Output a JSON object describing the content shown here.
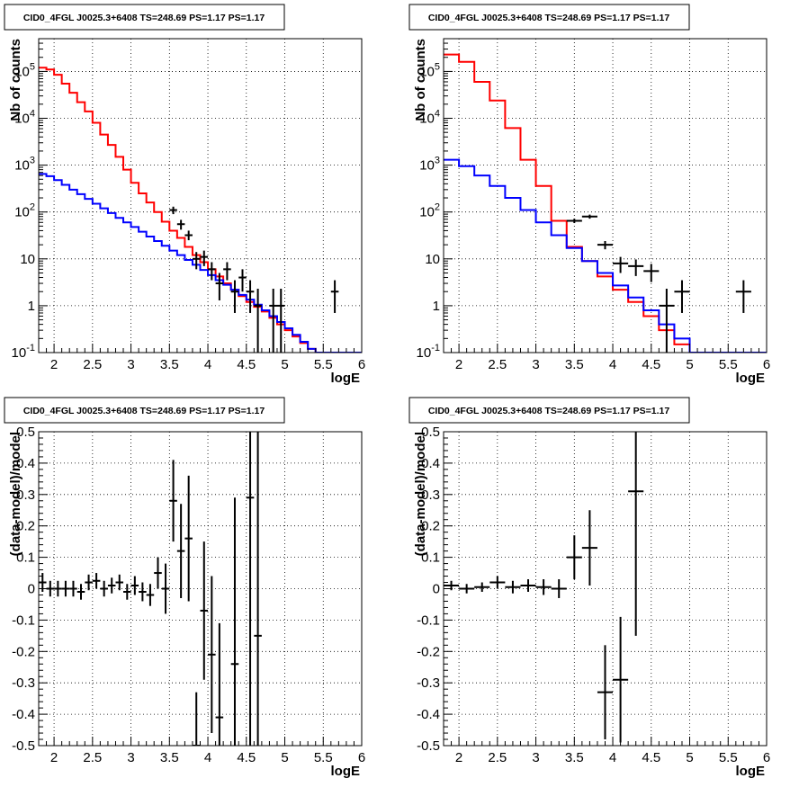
{
  "chart_data": [
    {
      "type": "line",
      "title": "CID0_4FGL J0025.3+6408 TS=248.69 PS=1.17 PS=1.17",
      "xlabel": "logE",
      "ylabel": "Nb of counts",
      "xlim": [
        1.8,
        6.0
      ],
      "ylim": [
        0.1,
        500000
      ],
      "yscale": "log",
      "grid": true,
      "x_ticks": [
        "2",
        "2.5",
        "3",
        "3.5",
        "4",
        "4.5",
        "5",
        "5.5",
        "6"
      ],
      "y_ticks": [
        "10^-1",
        "1",
        "10",
        "10^2",
        "10^3",
        "10^4",
        "10^5"
      ],
      "bin_edges": [
        1.8,
        1.9,
        2.0,
        2.1,
        2.2,
        2.3,
        2.4,
        2.5,
        2.6,
        2.7,
        2.8,
        2.9,
        3.0,
        3.1,
        3.2,
        3.3,
        3.4,
        3.5,
        3.6,
        3.7,
        3.8,
        3.9,
        4.0,
        4.1,
        4.2,
        4.3,
        4.4,
        4.5,
        4.6,
        4.7,
        4.8,
        4.9,
        5.0,
        5.1,
        5.2,
        5.3,
        5.4,
        5.5,
        5.6,
        5.7,
        5.8,
        5.9,
        6.0
      ],
      "series": [
        {
          "color": "#ff0000",
          "style": "step",
          "values": [
            120000,
            110000,
            85000,
            55000,
            35000,
            22000,
            14000,
            8000,
            4500,
            2700,
            1500,
            800,
            420,
            250,
            160,
            100,
            62,
            40,
            28,
            18,
            12,
            8.5,
            6,
            4.2,
            3,
            2.2,
            1.6,
            1.2,
            0.95,
            0.75,
            0.55,
            0.4,
            0.3,
            0.22,
            0.16,
            0.12,
            0.1,
            0.1,
            0.1,
            0.1,
            0.1,
            0.1
          ]
        },
        {
          "color": "#0000ff",
          "style": "step",
          "values": [
            650,
            580,
            480,
            380,
            300,
            240,
            190,
            150,
            120,
            95,
            75,
            60,
            48,
            38,
            30,
            24,
            19,
            15,
            12,
            9.5,
            7.5,
            5.8,
            4.5,
            3.5,
            2.8,
            2.2,
            1.7,
            1.35,
            1.05,
            0.8,
            0.6,
            0.45,
            0.33,
            0.24,
            0.17,
            0.12,
            0.1,
            0.1,
            0.1,
            0.1,
            0.1,
            0.1
          ]
        },
        {
          "color": "#000000",
          "style": "points",
          "points": [
            {
              "x": 3.55,
              "y": 110,
              "ylo": 90,
              "yhi": 130
            },
            {
              "x": 3.65,
              "y": 55,
              "ylo": 42,
              "yhi": 68
            },
            {
              "x": 3.75,
              "y": 32,
              "ylo": 25,
              "yhi": 40
            },
            {
              "x": 3.85,
              "y": 10,
              "ylo": 6,
              "yhi": 14
            },
            {
              "x": 3.95,
              "y": 11,
              "ylo": 7,
              "yhi": 15
            },
            {
              "x": 4.05,
              "y": 6,
              "ylo": 3.5,
              "yhi": 8.5
            },
            {
              "x": 4.15,
              "y": 3,
              "ylo": 1.3,
              "yhi": 5
            },
            {
              "x": 4.25,
              "y": 6,
              "ylo": 3.5,
              "yhi": 8.5
            },
            {
              "x": 4.35,
              "y": 2,
              "ylo": 0.7,
              "yhi": 3.5
            },
            {
              "x": 4.45,
              "y": 4,
              "ylo": 2,
              "yhi": 6
            },
            {
              "x": 4.55,
              "y": 2,
              "ylo": 0.7,
              "yhi": 3.5
            },
            {
              "x": 4.65,
              "y": 1,
              "ylo": 0.1,
              "yhi": 2.3
            },
            {
              "x": 4.85,
              "y": 1,
              "ylo": 0.1,
              "yhi": 2.3
            },
            {
              "x": 4.95,
              "y": 1,
              "ylo": 0.1,
              "yhi": 2.3
            },
            {
              "x": 5.65,
              "y": 2,
              "ylo": 0.7,
              "yhi": 3.5
            }
          ]
        }
      ]
    },
    {
      "type": "line",
      "title": "CID0_4FGL J0025.3+6408 TS=248.69 PS=1.17 PS=1.17",
      "xlabel": "logE",
      "ylabel": "Nb of counts",
      "xlim": [
        1.8,
        6.0
      ],
      "ylim": [
        0.1,
        500000
      ],
      "yscale": "log",
      "grid": true,
      "x_ticks": [
        "2",
        "2.5",
        "3",
        "3.5",
        "4",
        "4.5",
        "5",
        "5.5",
        "6"
      ],
      "y_ticks": [
        "10^-1",
        "1",
        "10",
        "10^2",
        "10^3",
        "10^4",
        "10^5"
      ],
      "bin_edges": [
        1.8,
        2.0,
        2.2,
        2.4,
        2.6,
        2.8,
        3.0,
        3.2,
        3.4,
        3.6,
        3.8,
        4.0,
        4.2,
        4.4,
        4.6,
        4.8,
        5.0,
        5.2,
        5.4,
        5.6,
        5.8,
        6.0
      ],
      "series": [
        {
          "color": "#ff0000",
          "style": "step",
          "values": [
            230000,
            160000,
            60000,
            24000,
            6200,
            1300,
            360,
            65,
            18,
            9,
            4.2,
            2.2,
            1.2,
            0.6,
            0.3,
            0.15,
            0.1,
            0.1,
            0.1,
            0.1,
            0.1
          ]
        },
        {
          "color": "#0000ff",
          "style": "step",
          "values": [
            1300,
            950,
            600,
            360,
            200,
            110,
            60,
            32,
            17,
            9,
            5,
            2.7,
            1.5,
            0.8,
            0.4,
            0.2,
            0.1,
            0.1,
            0.1,
            0.1,
            0.1
          ]
        },
        {
          "color": "#000000",
          "style": "points",
          "points": [
            {
              "x": 3.5,
              "y": 65,
              "ylo": 58,
              "yhi": 72
            },
            {
              "x": 3.7,
              "y": 80,
              "ylo": 72,
              "yhi": 88
            },
            {
              "x": 3.9,
              "y": 20,
              "ylo": 16,
              "yhi": 24
            },
            {
              "x": 4.1,
              "y": 8,
              "ylo": 5,
              "yhi": 11
            },
            {
              "x": 4.3,
              "y": 7,
              "ylo": 4.3,
              "yhi": 9.7
            },
            {
              "x": 4.5,
              "y": 5.5,
              "ylo": 3.2,
              "yhi": 7.8
            },
            {
              "x": 4.7,
              "y": 1,
              "ylo": 0.1,
              "yhi": 2.3
            },
            {
              "x": 4.9,
              "y": 2,
              "ylo": 0.7,
              "yhi": 3.5
            },
            {
              "x": 5.7,
              "y": 2,
              "ylo": 0.7,
              "yhi": 3.5
            }
          ]
        }
      ]
    },
    {
      "type": "scatter",
      "title": "CID0_4FGL J0025.3+6408 TS=248.69 PS=1.17 PS=1.17",
      "xlabel": "logE",
      "ylabel": "(data-model)/model",
      "xlim": [
        1.8,
        6.0
      ],
      "ylim": [
        -0.5,
        0.5
      ],
      "grid": true,
      "x_ticks": [
        "2",
        "2.5",
        "3",
        "3.5",
        "4",
        "4.5",
        "5",
        "5.5",
        "6"
      ],
      "y_ticks": [
        "-0.5",
        "-0.4",
        "-0.3",
        "-0.2",
        "-0.1",
        "0",
        "0.1",
        "0.2",
        "0.3",
        "0.4",
        "0.5"
      ],
      "x_halfwidth": 0.05,
      "points": [
        {
          "x": 1.85,
          "y": 0.02,
          "err": 0.03
        },
        {
          "x": 1.95,
          "y": 0.0,
          "err": 0.025
        },
        {
          "x": 2.05,
          "y": 0.0,
          "err": 0.025
        },
        {
          "x": 2.15,
          "y": 0.0,
          "err": 0.025
        },
        {
          "x": 2.25,
          "y": 0.0,
          "err": 0.025
        },
        {
          "x": 2.35,
          "y": -0.01,
          "err": 0.025
        },
        {
          "x": 2.45,
          "y": 0.02,
          "err": 0.025
        },
        {
          "x": 2.55,
          "y": 0.025,
          "err": 0.025
        },
        {
          "x": 2.65,
          "y": 0.0,
          "err": 0.025
        },
        {
          "x": 2.75,
          "y": 0.01,
          "err": 0.025
        },
        {
          "x": 2.85,
          "y": 0.02,
          "err": 0.025
        },
        {
          "x": 2.95,
          "y": -0.01,
          "err": 0.025
        },
        {
          "x": 3.05,
          "y": 0.01,
          "err": 0.03
        },
        {
          "x": 3.15,
          "y": -0.01,
          "err": 0.03
        },
        {
          "x": 3.25,
          "y": -0.02,
          "err": 0.035
        },
        {
          "x": 3.35,
          "y": 0.05,
          "err": 0.05
        },
        {
          "x": 3.45,
          "y": 0.0,
          "err": 0.08
        },
        {
          "x": 3.55,
          "y": 0.28,
          "err": 0.13
        },
        {
          "x": 3.65,
          "y": 0.12,
          "err": 0.15
        },
        {
          "x": 3.75,
          "y": 0.16,
          "err": 0.2
        },
        {
          "x": 3.85,
          "y": -0.5,
          "err": 0.17
        },
        {
          "x": 3.95,
          "y": -0.07,
          "err": 0.22
        },
        {
          "x": 4.05,
          "y": -0.21,
          "err": 0.25
        },
        {
          "x": 4.15,
          "y": -0.41,
          "err": 0.3
        },
        {
          "x": 4.35,
          "y": -0.24,
          "err": 0.53
        },
        {
          "x": 4.55,
          "y": 0.29,
          "err": 0.8
        },
        {
          "x": 4.65,
          "y": -0.15,
          "err": 0.8
        }
      ]
    },
    {
      "type": "scatter",
      "title": "CID0_4FGL J0025.3+6408 TS=248.69 PS=1.17 PS=1.17",
      "xlabel": "logE",
      "ylabel": "(data-model)/model",
      "xlim": [
        1.8,
        6.0
      ],
      "ylim": [
        -0.5,
        0.5
      ],
      "grid": true,
      "x_ticks": [
        "2",
        "2.5",
        "3",
        "3.5",
        "4",
        "4.5",
        "5",
        "5.5",
        "6"
      ],
      "y_ticks": [
        "-0.5",
        "-0.4",
        "-0.3",
        "-0.2",
        "-0.1",
        "0",
        "0.1",
        "0.2",
        "0.3",
        "0.4",
        "0.5"
      ],
      "x_halfwidth": 0.1,
      "points": [
        {
          "x": 1.9,
          "y": 0.01,
          "err": 0.015
        },
        {
          "x": 2.1,
          "y": 0.0,
          "err": 0.015
        },
        {
          "x": 2.3,
          "y": 0.005,
          "err": 0.015
        },
        {
          "x": 2.5,
          "y": 0.02,
          "err": 0.02
        },
        {
          "x": 2.7,
          "y": 0.005,
          "err": 0.02
        },
        {
          "x": 2.9,
          "y": 0.01,
          "err": 0.02
        },
        {
          "x": 3.1,
          "y": 0.005,
          "err": 0.025
        },
        {
          "x": 3.3,
          "y": 0.0,
          "err": 0.03
        },
        {
          "x": 3.5,
          "y": 0.1,
          "err": 0.07
        },
        {
          "x": 3.7,
          "y": 0.13,
          "err": 0.12
        },
        {
          "x": 3.9,
          "y": -0.33,
          "err": 0.15
        },
        {
          "x": 4.1,
          "y": -0.29,
          "err": 0.2
        },
        {
          "x": 4.3,
          "y": 0.31,
          "err": 0.46
        }
      ]
    }
  ]
}
